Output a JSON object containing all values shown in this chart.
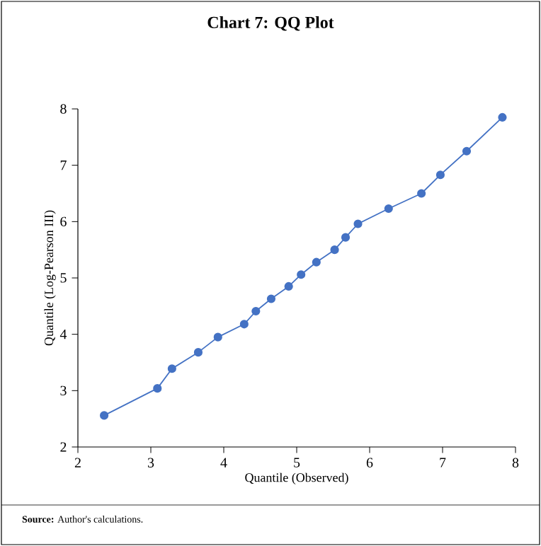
{
  "chart_data": {
    "type": "line",
    "title": "Chart 7: QQ Plot",
    "xlabel": "Quantile (Observed)",
    "ylabel": "Quantile (Log-Pearson III)",
    "annotations": [
      "**Source:** Author's calculations."
    ],
    "x": [
      2.36,
      3.09,
      3.29,
      3.65,
      3.92,
      4.28,
      4.44,
      4.65,
      4.89,
      5.06,
      5.27,
      5.52,
      5.67,
      5.84,
      6.26,
      6.71,
      6.97,
      7.33,
      7.82
    ],
    "series": [
      {
        "color": "#4472c4",
        "values": [
          2.56,
          3.04,
          3.39,
          3.68,
          3.95,
          4.18,
          4.41,
          4.63,
          4.85,
          5.06,
          5.28,
          5.5,
          5.72,
          5.96,
          6.23,
          6.5,
          6.83,
          7.25,
          7.85
        ]
      }
    ],
    "xlim": [
      2,
      8
    ],
    "ylim": [
      2,
      8
    ],
    "xticks": [
      2,
      3,
      4,
      5,
      6,
      7,
      8
    ],
    "yticks": [
      2,
      3,
      4,
      5,
      6,
      7,
      8
    ],
    "marker": "circle",
    "line_style": "solid"
  }
}
